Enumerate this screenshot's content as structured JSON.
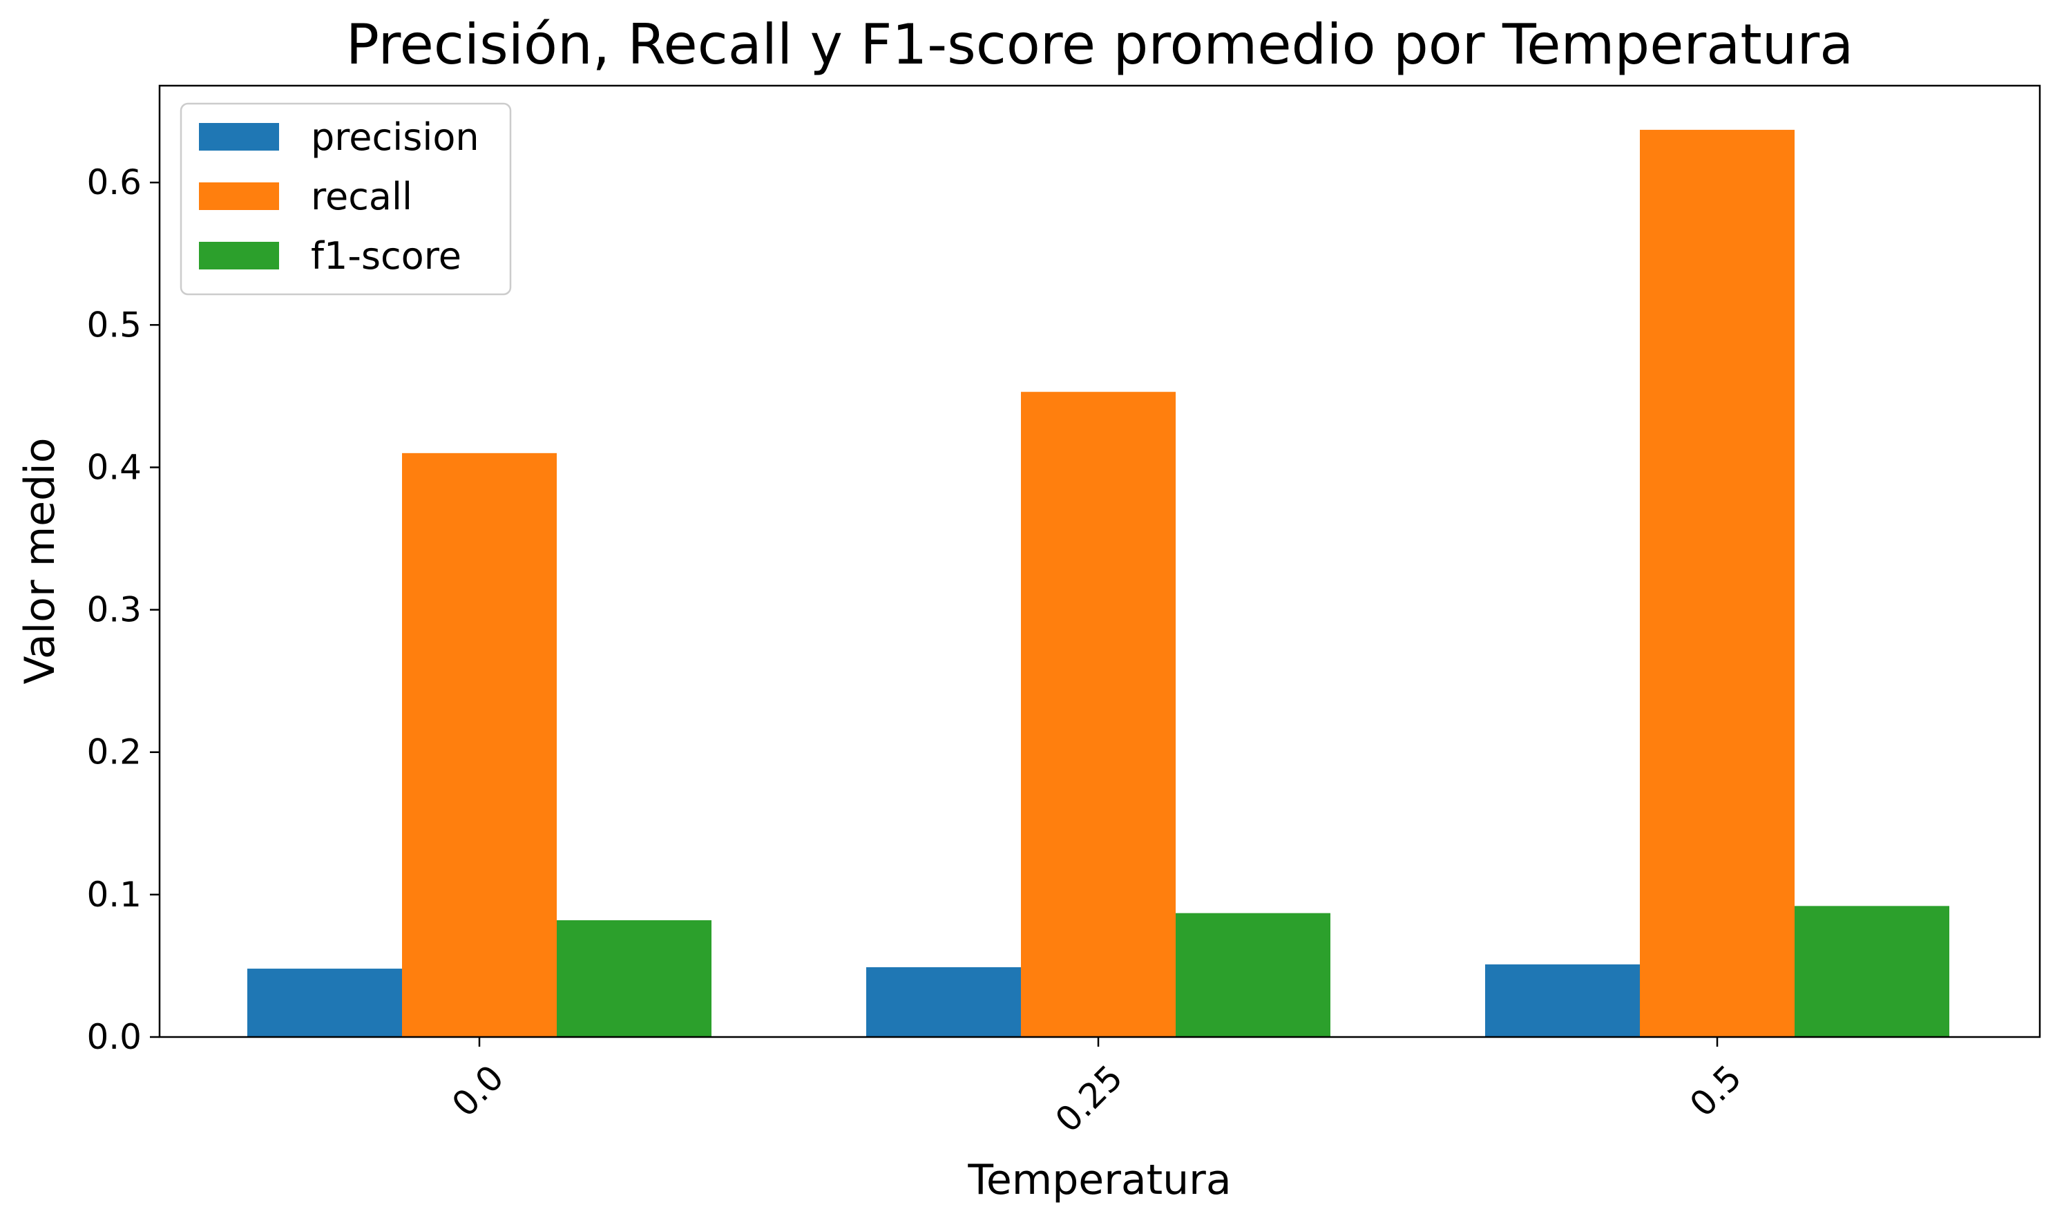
{
  "chart_data": {
    "type": "bar",
    "title": "Precisión, Recall y F1-score promedio por Temperatura",
    "xlabel": "Temperatura",
    "ylabel": "Valor medio",
    "categories": [
      "0.0",
      "0.25",
      "0.5"
    ],
    "series": [
      {
        "name": "precision",
        "color": "#1f77b4",
        "values": [
          0.048,
          0.049,
          0.051
        ]
      },
      {
        "name": "recall",
        "color": "#ff7f0e",
        "values": [
          0.41,
          0.453,
          0.637
        ]
      },
      {
        "name": "f1-score",
        "color": "#2ca02c",
        "values": [
          0.082,
          0.087,
          0.092
        ]
      }
    ],
    "ylim": [
      0,
      0.668
    ],
    "yticks": [
      "0.0",
      "0.1",
      "0.2",
      "0.3",
      "0.4",
      "0.5",
      "0.6"
    ],
    "xtick_rotation_deg": 45,
    "legend_position": "top-left",
    "grid": false
  }
}
